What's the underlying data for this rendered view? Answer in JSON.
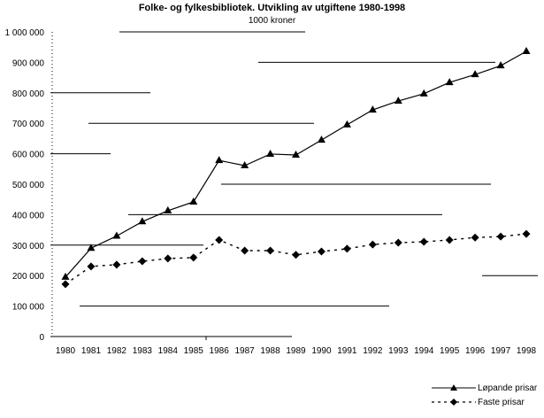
{
  "chart_data": {
    "type": "line",
    "title": "Folke- og fylkesbibliotek. Utvikling av utgiftene 1980-1998",
    "subtitle": "1000 kroner",
    "xlabel": "",
    "ylabel": "",
    "ylim": [
      0,
      1000000
    ],
    "y_ticks": [
      "0",
      "100 000",
      "200 000",
      "300 000",
      "400 000",
      "500 000",
      "600 000",
      "700 000",
      "800 000",
      "900 000",
      "1 000 000"
    ],
    "categories": [
      "1980",
      "1981",
      "1982",
      "1983",
      "1984",
      "1985",
      "1986",
      "1987",
      "1988",
      "1989",
      "1990",
      "1991",
      "1992",
      "1993",
      "1994",
      "1995",
      "1996",
      "1997",
      "1998"
    ],
    "series": [
      {
        "name": "Løpande prisar",
        "marker": "triangle",
        "line": "solid",
        "values": [
          195000,
          290000,
          330000,
          377000,
          413000,
          442000,
          578000,
          561000,
          599000,
          596000,
          645000,
          695000,
          744000,
          773000,
          797000,
          834000,
          860000,
          889000,
          936000
        ]
      },
      {
        "name": "Faste prisar",
        "marker": "diamond",
        "line": "dashed",
        "values": [
          172000,
          230000,
          236000,
          247000,
          256000,
          259000,
          317000,
          282000,
          282000,
          268000,
          279000,
          288000,
          302000,
          308000,
          311000,
          317000,
          325000,
          328000,
          337000
        ]
      }
    ],
    "grid": true,
    "legend_position": "bottom-right"
  },
  "legend": {
    "items": [
      {
        "label": "Løpande prisar"
      },
      {
        "label": "Faste prisar"
      }
    ]
  }
}
